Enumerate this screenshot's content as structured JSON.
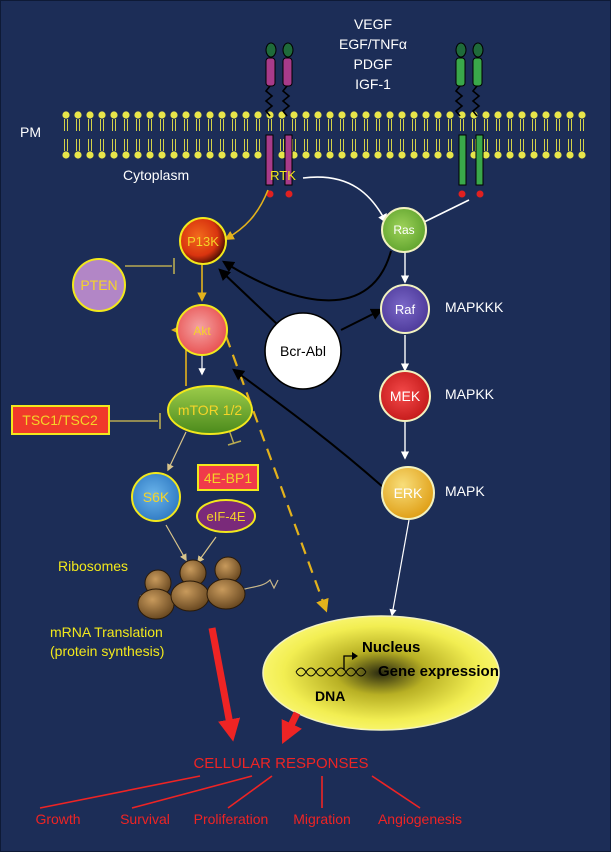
{
  "colors": {
    "background": "#1c2d57",
    "membrane": "#e7e64a",
    "arrow_white": "#ffffff",
    "arrow_black": "#000000",
    "arrow_yellow": "#e3b21c",
    "response_red": "#ee2424",
    "label_yellow": "#f2e81c"
  },
  "labels": {
    "ligands": [
      "VEGF",
      "EGF/TNFα",
      "PDGF",
      "IGF-1"
    ],
    "pm": "PM",
    "cytoplasm": "Cytoplasm",
    "rtk": "RTK"
  },
  "nodes": {
    "pi3k": "P13K",
    "pten": "PTEN",
    "akt": "Akt",
    "mtor": "mTOR 1/2",
    "tsc": "TSC1/TSC2",
    "s6k": "S6K",
    "fourebp1": "4E-BP1",
    "eif4e": "eIF-4E",
    "ras": "Ras",
    "raf": "Raf",
    "mek": "MEK",
    "erk": "ERK",
    "bcrabl": "Bcr-Abl"
  },
  "kinase_labels": {
    "mapkkk": "MAPKKK",
    "mapkk": "MAPKK",
    "mapk": "MAPK"
  },
  "translation": {
    "ribosomes": "Ribosomes",
    "line1": "mRNA Translation",
    "line2": "(protein synthesis)"
  },
  "nucleus": {
    "title": "Nucleus",
    "gene_expression": "Gene expression",
    "dna": "DNA"
  },
  "responses": {
    "title": "CELLULAR RESPONSES",
    "items": [
      "Growth",
      "Survival",
      "Proliferation",
      "Migration",
      "Angiogenesis"
    ]
  }
}
